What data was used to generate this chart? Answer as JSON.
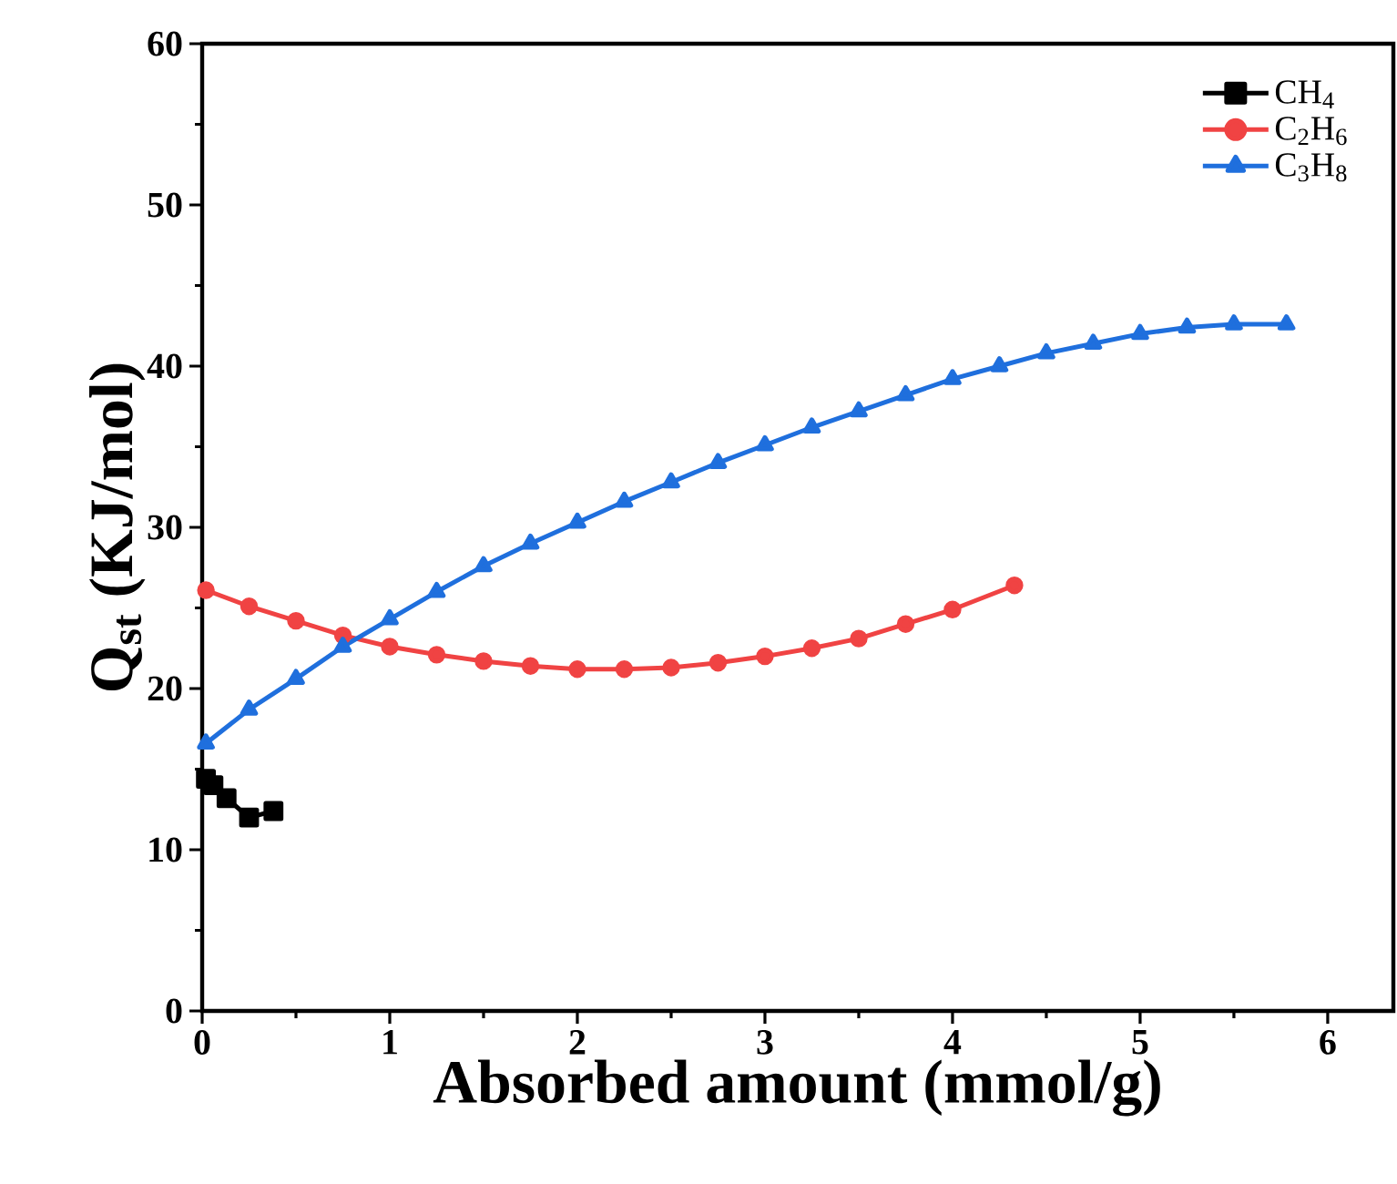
{
  "chart_data": {
    "type": "line",
    "xlabel": "Absorbed amount (mmol/g)",
    "ylabel": "Q$_{st}$ (KJ/mol)",
    "xlim": [
      0,
      6.35
    ],
    "ylim": [
      0,
      60
    ],
    "xticks": [
      0,
      1,
      2,
      3,
      4,
      5,
      6
    ],
    "yticks": [
      0,
      10,
      20,
      30,
      40,
      50,
      60
    ],
    "legend": "top right",
    "grid": false,
    "series": [
      {
        "name": "CH$_{4}$",
        "color": "#000000",
        "marker": "square",
        "x": [
          0.02,
          0.06,
          0.13,
          0.25,
          0.38
        ],
        "values": [
          14.4,
          14.0,
          13.2,
          12.0,
          12.4
        ]
      },
      {
        "name": "C$_{2}$H$_{6}$",
        "color": "#f04343",
        "marker": "circle",
        "x": [
          0.02,
          0.25,
          0.5,
          0.75,
          1.0,
          1.25,
          1.5,
          1.75,
          2.0,
          2.25,
          2.5,
          2.75,
          3.0,
          3.25,
          3.5,
          3.75,
          4.0,
          4.33
        ],
        "values": [
          26.1,
          25.1,
          24.2,
          23.3,
          22.6,
          22.1,
          21.7,
          21.4,
          21.2,
          21.2,
          21.3,
          21.6,
          22.0,
          22.5,
          23.1,
          24.0,
          24.9,
          26.4
        ]
      },
      {
        "name": "C$_{3}$H$_{8}$",
        "color": "#1f6fdd",
        "marker": "triangle",
        "x": [
          0.02,
          0.25,
          0.5,
          0.75,
          1.0,
          1.25,
          1.5,
          1.75,
          2.0,
          2.25,
          2.5,
          2.75,
          3.0,
          3.25,
          3.5,
          3.75,
          4.0,
          4.25,
          4.5,
          4.75,
          5.0,
          5.25,
          5.5,
          5.78
        ],
        "values": [
          16.6,
          18.7,
          20.6,
          22.6,
          24.3,
          26.0,
          27.6,
          29.0,
          30.3,
          31.6,
          32.8,
          34.0,
          35.1,
          36.2,
          37.2,
          38.2,
          39.2,
          40.0,
          40.8,
          41.4,
          42.0,
          42.4,
          42.6,
          42.6
        ]
      }
    ]
  }
}
